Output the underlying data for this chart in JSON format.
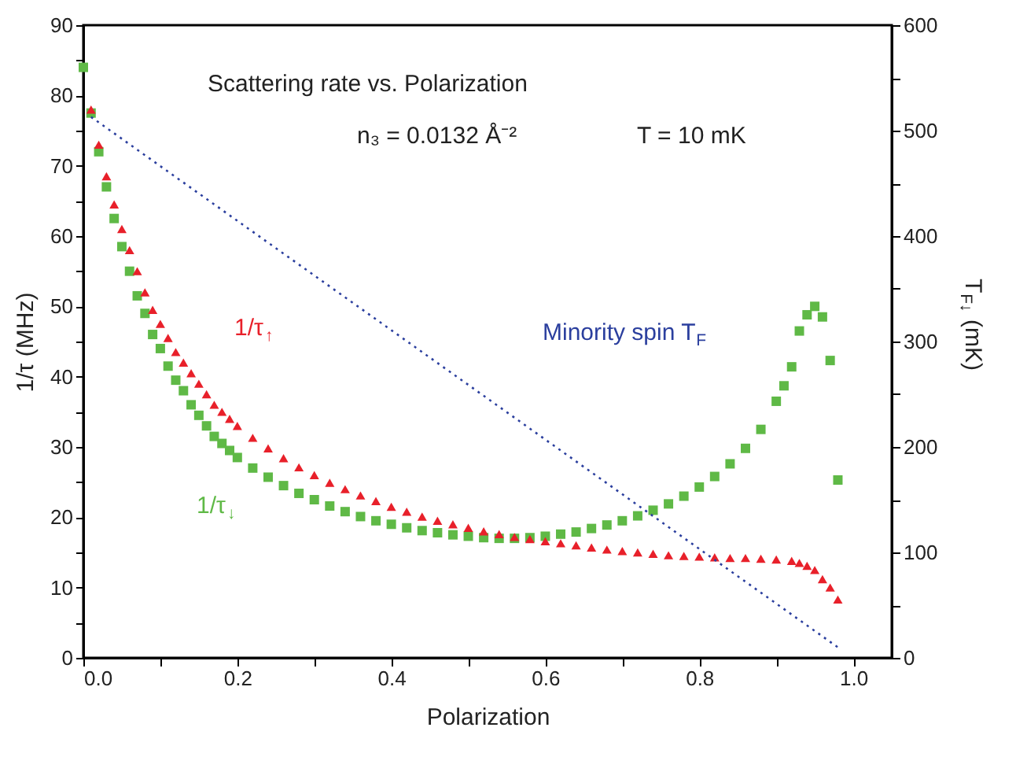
{
  "chart_data": {
    "type": "scatter",
    "xlabel": "Polarization",
    "ylabel": "1/τ (MHz)",
    "y2label": "T$_{F↓}$ (mK)",
    "annotations": [
      "Scattering rate vs. Polarization",
      "n₃ = 0.0132 Å⁻²",
      "T = 10 mK"
    ],
    "xlim": [
      0,
      1.05
    ],
    "ylim": [
      0,
      90
    ],
    "y2lim": [
      0,
      600
    ],
    "xticks": [
      {
        "value": 0,
        "label": "0.0"
      },
      {
        "value": 0.1,
        "label": null
      },
      0.2,
      {
        "value": 0.3,
        "label": null
      },
      0.4,
      {
        "value": 0.5,
        "label": null
      },
      0.6,
      {
        "value": 0.7,
        "label": null
      },
      0.8,
      {
        "value": 0.9,
        "label": null
      },
      {
        "value": 1,
        "label": "1.0"
      }
    ],
    "yticks": [
      0,
      {
        "value": 5,
        "label": null
      },
      10,
      {
        "value": 15,
        "label": null
      },
      20,
      {
        "value": 25,
        "label": null
      },
      30,
      {
        "value": 35,
        "label": null
      },
      40,
      {
        "value": 45,
        "label": null
      },
      50,
      {
        "value": 55,
        "label": null
      },
      60,
      {
        "value": 65,
        "label": null
      },
      70,
      {
        "value": 75,
        "label": null
      },
      80,
      {
        "value": 85,
        "label": null
      },
      90
    ],
    "y2ticks": [
      0,
      {
        "value": 50,
        "label": null
      },
      100,
      {
        "value": 150,
        "label": null
      },
      200,
      {
        "value": 250,
        "label": null
      },
      300,
      {
        "value": 350,
        "label": null
      },
      400,
      {
        "value": 450,
        "label": null
      },
      500,
      {
        "value": 550,
        "label": null
      },
      600
    ],
    "grid": false,
    "series": [
      {
        "name": "1/τ$_{↑}$",
        "marker": "triangle",
        "color": "#e8202a",
        "x": [
          0.01,
          0.02,
          0.03,
          0.04,
          0.05,
          0.06,
          0.07,
          0.08,
          0.09,
          0.1,
          0.11,
          0.12,
          0.13,
          0.14,
          0.15,
          0.16,
          0.17,
          0.18,
          0.19,
          0.2,
          0.22,
          0.24,
          0.26,
          0.28,
          0.3,
          0.32,
          0.34,
          0.36,
          0.38,
          0.4,
          0.42,
          0.44,
          0.46,
          0.48,
          0.5,
          0.52,
          0.54,
          0.56,
          0.58,
          0.6,
          0.62,
          0.64,
          0.66,
          0.68,
          0.7,
          0.72,
          0.74,
          0.76,
          0.78,
          0.8,
          0.82,
          0.84,
          0.86,
          0.88,
          0.9,
          0.92,
          0.93,
          0.94,
          0.95,
          0.96,
          0.97,
          0.98
        ],
        "values": [
          78,
          73,
          68.5,
          64.5,
          61,
          58,
          55,
          52,
          49.5,
          47.5,
          45.5,
          43.5,
          42,
          40.5,
          39,
          37.5,
          36,
          35,
          34,
          33,
          31.3,
          29.8,
          28.4,
          27.1,
          26,
          24.9,
          24,
          23.1,
          22.3,
          21.5,
          20.8,
          20.1,
          19.5,
          19,
          18.5,
          18,
          17.6,
          17.2,
          16.9,
          16.6,
          16.3,
          16,
          15.7,
          15.4,
          15.2,
          15,
          14.8,
          14.6,
          14.5,
          14.4,
          14.3,
          14.2,
          14.2,
          14.1,
          14,
          13.8,
          13.5,
          13.1,
          12.5,
          11.2,
          10,
          8.3
        ]
      },
      {
        "name": "1/τ$_{↓}$",
        "marker": "square",
        "color": "#5fb946",
        "x": [
          0,
          0.01,
          0.02,
          0.03,
          0.04,
          0.05,
          0.06,
          0.07,
          0.08,
          0.09,
          0.1,
          0.11,
          0.12,
          0.13,
          0.14,
          0.15,
          0.16,
          0.17,
          0.18,
          0.19,
          0.2,
          0.22,
          0.24,
          0.26,
          0.28,
          0.3,
          0.32,
          0.34,
          0.36,
          0.38,
          0.4,
          0.42,
          0.44,
          0.46,
          0.48,
          0.5,
          0.52,
          0.54,
          0.56,
          0.58,
          0.6,
          0.62,
          0.64,
          0.66,
          0.68,
          0.7,
          0.72,
          0.74,
          0.76,
          0.78,
          0.8,
          0.82,
          0.84,
          0.86,
          0.88,
          0.9,
          0.91,
          0.92,
          0.93,
          0.94,
          0.95,
          0.96,
          0.97,
          0.98
        ],
        "values": [
          84,
          77.5,
          72,
          67,
          62.5,
          58.5,
          55,
          51.5,
          49,
          46,
          44,
          41.5,
          39.5,
          38,
          36,
          34.5,
          33,
          31.5,
          30.5,
          29.5,
          28.5,
          27,
          25.7,
          24.5,
          23.4,
          22.5,
          21.6,
          20.8,
          20.1,
          19.5,
          19,
          18.5,
          18.1,
          17.8,
          17.5,
          17.3,
          17.1,
          17,
          17,
          17.1,
          17.3,
          17.6,
          17.9,
          18.4,
          18.9,
          19.5,
          20.2,
          21,
          21.9,
          23,
          24.3,
          25.8,
          27.6,
          29.8,
          32.5,
          36.5,
          38.7,
          41.4,
          46.5,
          48.8,
          50,
          48.5,
          42.3,
          25.3
        ]
      },
      {
        "name": "Minority spin T$_{F}$",
        "type": "line",
        "axis": "y2",
        "marker": "none",
        "line_style": "dotted",
        "color": "#2b3f9e",
        "x": [
          0.01,
          0.98
        ],
        "values": [
          513,
          10
        ]
      }
    ]
  }
}
